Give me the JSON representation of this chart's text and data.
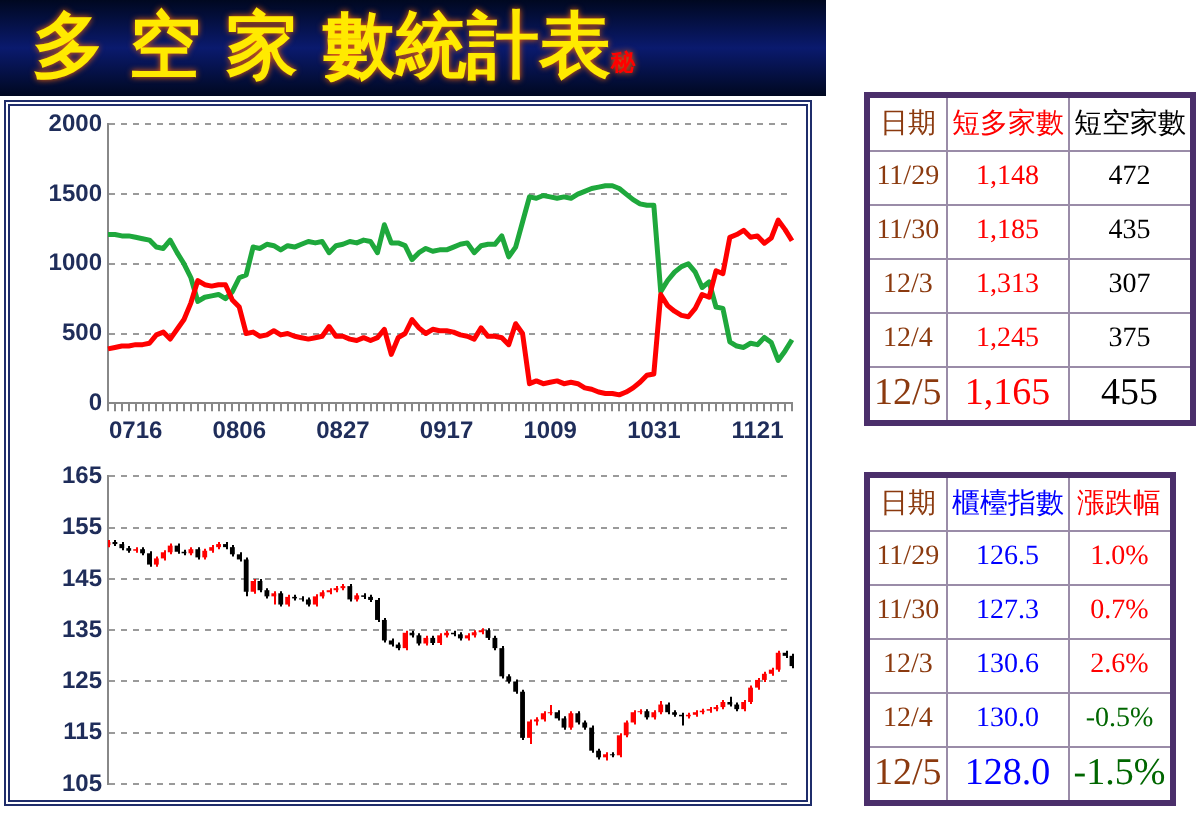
{
  "chart_data": [
    {
      "type": "line",
      "title": "多 空 家 數統計表",
      "annotations": [
        "秘"
      ],
      "categories": [
        null,
        null,
        null,
        null,
        "0716",
        null,
        null,
        null,
        null,
        null,
        null,
        null,
        null,
        null,
        null,
        null,
        null,
        null,
        null,
        "0806",
        null,
        null,
        null,
        null,
        null,
        null,
        null,
        null,
        null,
        null,
        null,
        null,
        null,
        null,
        "0827",
        null,
        null,
        null,
        null,
        null,
        null,
        null,
        null,
        null,
        null,
        null,
        null,
        null,
        null,
        "0917",
        null,
        null,
        null,
        null,
        null,
        null,
        null,
        null,
        null,
        null,
        null,
        null,
        null,
        null,
        "1009",
        null,
        null,
        null,
        null,
        null,
        null,
        null,
        null,
        null,
        null,
        null,
        null,
        null,
        null,
        "1031",
        null,
        null,
        null,
        null,
        null,
        null,
        null,
        null,
        null,
        null,
        null,
        null,
        null,
        null,
        "1121",
        null,
        null,
        null,
        null,
        null
      ],
      "series": [
        {
          "color": "#ff0000",
          "values": [
            390,
            400,
            410,
            410,
            420,
            420,
            430,
            490,
            510,
            460,
            530,
            600,
            720,
            880,
            850,
            840,
            850,
            850,
            740,
            690,
            500,
            510,
            480,
            490,
            520,
            490,
            500,
            480,
            470,
            460,
            470,
            480,
            550,
            480,
            480,
            460,
            450,
            470,
            450,
            470,
            530,
            350,
            470,
            500,
            600,
            540,
            500,
            530,
            520,
            520,
            510,
            490,
            480,
            460,
            540,
            480,
            480,
            470,
            420,
            570,
            500,
            140,
            160,
            140,
            150,
            160,
            140,
            150,
            140,
            110,
            100,
            80,
            70,
            70,
            60,
            80,
            110,
            150,
            200,
            210,
            780,
            700,
            660,
            630,
            620,
            680,
            780,
            760,
            950,
            930,
            1190,
            1210,
            1240,
            1190,
            1200,
            1148,
            1185,
            1313,
            1245,
            1165
          ]
        },
        {
          "color": "#1ea83c",
          "values": [
            1210,
            1210,
            1200,
            1200,
            1190,
            1180,
            1170,
            1120,
            1110,
            1170,
            1080,
            1000,
            900,
            730,
            760,
            770,
            780,
            750,
            800,
            900,
            920,
            1120,
            1110,
            1140,
            1130,
            1100,
            1130,
            1120,
            1140,
            1160,
            1150,
            1160,
            1080,
            1130,
            1140,
            1160,
            1150,
            1170,
            1160,
            1080,
            1280,
            1150,
            1150,
            1130,
            1030,
            1080,
            1110,
            1090,
            1100,
            1100,
            1120,
            1140,
            1150,
            1080,
            1130,
            1140,
            1140,
            1200,
            1050,
            1120,
            1300,
            1480,
            1470,
            1490,
            1480,
            1470,
            1480,
            1470,
            1500,
            1520,
            1540,
            1550,
            1560,
            1560,
            1540,
            1500,
            1460,
            1430,
            1420,
            1420,
            800,
            880,
            940,
            980,
            1000,
            940,
            830,
            870,
            690,
            680,
            440,
            410,
            400,
            430,
            420,
            472,
            435,
            307,
            375,
            455
          ]
        }
      ],
      "ylim": [
        0,
        2000
      ],
      "yticks": [
        0,
        500,
        1000,
        1500,
        2000
      ],
      "grid": "y",
      "legend": false,
      "marker": "none",
      "line_style": "solid"
    },
    {
      "type": "candlestick",
      "categories": [
        null,
        null,
        null,
        null,
        null,
        null,
        null,
        null,
        null,
        null,
        null,
        null,
        null,
        null,
        null,
        null,
        null,
        null,
        null,
        null,
        null,
        null,
        null,
        null,
        null,
        null,
        null,
        null,
        null,
        null,
        null,
        null,
        null,
        null,
        null,
        null,
        null,
        null,
        null,
        null,
        null,
        null,
        null,
        null,
        null,
        null,
        null,
        null,
        null,
        null,
        null,
        null,
        null,
        null,
        null,
        null,
        null,
        null,
        null,
        null,
        null,
        null,
        null,
        null,
        null,
        null,
        null,
        null,
        null,
        null,
        null,
        null,
        null,
        null,
        null,
        null,
        null,
        null,
        null,
        null,
        null,
        null,
        null,
        null,
        null,
        null,
        null,
        null,
        null,
        null,
        null,
        null,
        null,
        null,
        null,
        null,
        null,
        null,
        null,
        null
      ],
      "ohlc": [
        [
          151.6,
          152.6,
          151.2,
          152.2
        ],
        [
          152.2,
          152.6,
          151.4,
          151.8
        ],
        [
          151.8,
          152.2,
          150.6,
          151.0
        ],
        [
          151.0,
          151.4,
          150.1,
          150.5
        ],
        [
          150.5,
          151.2,
          150.1,
          150.8
        ],
        [
          150.8,
          151.2,
          149.6,
          150.0
        ],
        [
          150.0,
          150.4,
          147.4,
          147.8
        ],
        [
          147.8,
          149.4,
          147.4,
          149.0
        ],
        [
          149.0,
          150.6,
          148.6,
          150.2
        ],
        [
          150.2,
          151.9,
          149.8,
          151.5
        ],
        [
          151.5,
          151.9,
          149.9,
          150.3
        ],
        [
          150.3,
          150.7,
          149.6,
          150.0
        ],
        [
          150.0,
          151.2,
          149.6,
          150.8
        ],
        [
          150.8,
          151.2,
          148.8,
          149.2
        ],
        [
          149.2,
          150.9,
          148.8,
          150.5
        ],
        [
          150.5,
          151.6,
          150.1,
          151.2
        ],
        [
          151.2,
          152.2,
          150.8,
          151.8
        ],
        [
          151.8,
          152.2,
          150.8,
          151.2
        ],
        [
          151.2,
          151.6,
          149.4,
          149.8
        ],
        [
          149.8,
          150.2,
          148.4,
          148.8
        ],
        [
          148.8,
          149.2,
          141.6,
          142.5
        ],
        [
          142.5,
          145.0,
          142.1,
          144.6
        ],
        [
          144.6,
          145.0,
          142.4,
          142.8
        ],
        [
          142.8,
          143.2,
          141.2,
          141.6
        ],
        [
          141.6,
          142.6,
          140.0,
          142.2
        ],
        [
          142.2,
          142.6,
          139.6,
          140.0
        ],
        [
          140.0,
          141.9,
          139.6,
          141.5
        ],
        [
          141.5,
          141.9,
          140.8,
          141.2
        ],
        [
          141.2,
          141.6,
          140.6,
          141.0
        ],
        [
          141.0,
          141.4,
          139.6,
          140.0
        ],
        [
          140.0,
          142.0,
          139.6,
          141.6
        ],
        [
          141.6,
          142.8,
          141.2,
          142.4
        ],
        [
          142.4,
          143.2,
          142.0,
          142.8
        ],
        [
          142.8,
          143.6,
          142.4,
          143.2
        ],
        [
          143.2,
          144.0,
          142.8,
          143.6
        ],
        [
          143.6,
          144.0,
          140.6,
          141.0
        ],
        [
          141.0,
          142.2,
          140.6,
          141.8
        ],
        [
          141.8,
          142.2,
          141.1,
          141.5
        ],
        [
          141.5,
          141.9,
          140.5,
          140.9
        ],
        [
          140.9,
          141.3,
          136.6,
          137.0
        ],
        [
          137.0,
          137.4,
          132.6,
          133.0
        ],
        [
          133.0,
          133.4,
          131.8,
          132.2
        ],
        [
          132.2,
          132.6,
          131.1,
          131.5
        ],
        [
          131.5,
          134.9,
          131.1,
          134.5
        ],
        [
          134.5,
          134.9,
          133.6,
          134.0
        ],
        [
          134.0,
          134.4,
          132.0,
          132.4
        ],
        [
          132.4,
          133.9,
          132.0,
          133.5
        ],
        [
          133.5,
          133.9,
          132.1,
          132.5
        ],
        [
          132.5,
          134.4,
          132.1,
          134.0
        ],
        [
          134.0,
          134.9,
          133.6,
          134.5
        ],
        [
          134.5,
          134.9,
          133.8,
          134.2
        ],
        [
          134.2,
          134.6,
          133.0,
          133.4
        ],
        [
          133.4,
          134.4,
          133.0,
          134.0
        ],
        [
          134.0,
          135.0,
          133.6,
          134.6
        ],
        [
          134.6,
          135.4,
          134.2,
          135.0
        ],
        [
          135.0,
          135.4,
          133.1,
          133.5
        ],
        [
          133.5,
          133.9,
          131.1,
          131.5
        ],
        [
          131.5,
          131.9,
          125.6,
          126.0
        ],
        [
          126.0,
          126.4,
          124.6,
          125.0
        ],
        [
          125.0,
          125.4,
          122.6,
          123.0
        ],
        [
          123.0,
          123.4,
          113.6,
          114.0
        ],
        [
          114.0,
          117.6,
          112.8,
          117.2
        ],
        [
          117.2,
          118.0,
          116.4,
          117.6
        ],
        [
          117.6,
          119.2,
          117.2,
          118.8
        ],
        [
          118.8,
          120.4,
          118.4,
          119.0
        ],
        [
          119.0,
          119.4,
          117.4,
          117.8
        ],
        [
          117.8,
          118.2,
          115.6,
          116.0
        ],
        [
          116.0,
          119.2,
          115.6,
          118.8
        ],
        [
          118.8,
          119.2,
          116.6,
          117.0
        ],
        [
          117.0,
          117.4,
          115.6,
          116.0
        ],
        [
          116.0,
          116.4,
          111.1,
          111.5
        ],
        [
          111.5,
          111.9,
          109.8,
          110.2
        ],
        [
          110.2,
          111.2,
          109.6,
          110.8
        ],
        [
          110.8,
          111.2,
          110.2,
          110.6
        ],
        [
          110.6,
          114.9,
          110.2,
          114.5
        ],
        [
          114.5,
          117.4,
          114.1,
          117.0
        ],
        [
          117.0,
          119.4,
          116.6,
          119.0
        ],
        [
          119.0,
          119.6,
          118.6,
          119.2
        ],
        [
          119.2,
          119.6,
          117.6,
          118.0
        ],
        [
          118.0,
          119.4,
          117.6,
          119.0
        ],
        [
          119.0,
          121.2,
          118.6,
          120.5
        ],
        [
          120.5,
          120.9,
          118.6,
          119.0
        ],
        [
          119.0,
          119.4,
          118.1,
          118.5
        ],
        [
          118.5,
          118.9,
          116.4,
          118.2
        ],
        [
          118.2,
          118.9,
          117.8,
          118.5
        ],
        [
          118.5,
          119.4,
          118.1,
          119.0
        ],
        [
          119.0,
          119.7,
          118.6,
          119.3
        ],
        [
          119.3,
          120.0,
          118.9,
          119.6
        ],
        [
          119.6,
          120.4,
          119.2,
          120.0
        ],
        [
          120.0,
          121.4,
          119.6,
          121.0
        ],
        [
          121.0,
          122.0,
          120.1,
          120.5
        ],
        [
          120.5,
          120.9,
          119.2,
          119.6
        ],
        [
          119.6,
          121.4,
          119.2,
          121.0
        ],
        [
          121.0,
          124.2,
          120.6,
          123.8
        ],
        [
          123.8,
          125.7,
          123.4,
          125.3
        ],
        [
          125.3,
          126.9,
          124.9,
          126.5
        ],
        [
          126.5,
          127.7,
          126.1,
          127.3
        ],
        [
          127.3,
          131.0,
          126.9,
          130.6
        ],
        [
          130.6,
          131.0,
          129.6,
          130.0
        ],
        [
          130.0,
          130.4,
          127.6,
          128.0
        ]
      ],
      "colors": [
        "#ff0000",
        "#000000",
        "#000000",
        "#000000",
        "#ff0000",
        "#000000",
        "#000000",
        "#ff0000",
        "#ff0000",
        "#ff0000",
        "#000000",
        "#000000",
        "#ff0000",
        "#000000",
        "#ff0000",
        "#ff0000",
        "#ff0000",
        "#000000",
        "#000000",
        "#000000",
        "#000000",
        "#ff0000",
        "#000000",
        "#000000",
        "#ff0000",
        "#000000",
        "#ff0000",
        "#000000",
        "#000000",
        "#000000",
        "#ff0000",
        "#ff0000",
        "#ff0000",
        "#ff0000",
        "#ff0000",
        "#000000",
        "#ff0000",
        "#000000",
        "#000000",
        "#000000",
        "#000000",
        "#000000",
        "#000000",
        "#ff0000",
        "#000000",
        "#000000",
        "#ff0000",
        "#000000",
        "#ff0000",
        "#ff0000",
        "#000000",
        "#000000",
        "#ff0000",
        "#ff0000",
        "#ff0000",
        "#000000",
        "#000000",
        "#000000",
        "#000000",
        "#000000",
        "#000000",
        "#ff0000",
        "#ff0000",
        "#ff0000",
        "#ff0000",
        "#000000",
        "#000000",
        "#ff0000",
        "#000000",
        "#000000",
        "#000000",
        "#000000",
        "#ff0000",
        "#000000",
        "#ff0000",
        "#ff0000",
        "#ff0000",
        "#ff0000",
        "#000000",
        "#ff0000",
        "#ff0000",
        "#000000",
        "#000000",
        "#000000",
        "#ff0000",
        "#ff0000",
        "#ff0000",
        "#ff0000",
        "#ff0000",
        "#ff0000",
        "#000000",
        "#000000",
        "#ff0000",
        "#ff0000",
        "#ff0000",
        "#ff0000",
        "#ff0000",
        "#ff0000",
        "#000000",
        "#000000"
      ],
      "ylim": [
        105,
        165
      ],
      "yticks": [
        105,
        115,
        125,
        135,
        145,
        155,
        165
      ],
      "grid": "y",
      "tick_labels": "y",
      "legend": false
    },
    {
      "type": "other",
      "categories": [
        "日期",
        "短多家數",
        "短空家數"
      ],
      "annotations": [
        "11/29",
        "1,148",
        "472",
        "11/30",
        "1,185",
        "435",
        "12/3",
        "1,313",
        "307",
        "12/4",
        "1,245",
        "375",
        "12/5",
        "1,165",
        "455"
      ]
    },
    {
      "type": "other",
      "categories": [
        "日期",
        "櫃檯指數",
        "漲跌幅"
      ],
      "annotations": [
        "11/29",
        "126.5",
        "1.0%",
        "11/30",
        "127.3",
        "0.7%",
        "12/3",
        "130.6",
        "2.6%",
        "12/4",
        "130.0",
        "-0.5%",
        "12/5",
        "128.0",
        "-1.5%"
      ]
    }
  ]
}
